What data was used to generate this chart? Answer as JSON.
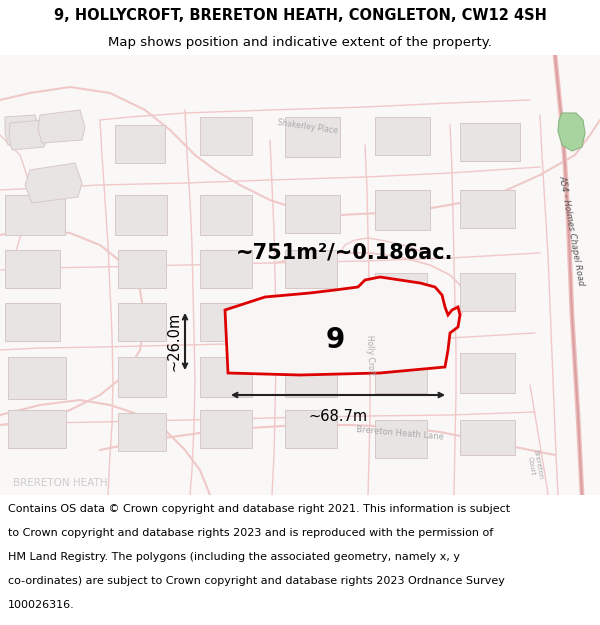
{
  "title_line1": "9, HOLLYCROFT, BRERETON HEATH, CONGLETON, CW12 4SH",
  "title_line2": "Map shows position and indicative extent of the property.",
  "area_label": "~751m²/~0.186ac.",
  "width_label": "~68.7m",
  "height_label": "~26.0m",
  "plot_number": "9",
  "map_bg": "#f9f6f6",
  "road_color": "#f0c8c8",
  "road_lw": 1.2,
  "building_fill": "#e8e4e4",
  "building_edge": "#d8c8c8",
  "plot_outline_color": "#dd0000",
  "green_fill": "#a8d4a0",
  "green_edge": "#88b480",
  "footer_lines": [
    "Contains OS data © Crown copyright and database right 2021. This information is subject",
    "to Crown copyright and database rights 2023 and is reproduced with the permission of",
    "HM Land Registry. The polygons (including the associated geometry, namely x, y",
    "co-ordinates) are subject to Crown copyright and database rights 2023 Ordnance Survey",
    "100026316."
  ],
  "title_fontsize": 10.5,
  "subtitle_fontsize": 9.5,
  "footer_fontsize": 8.0,
  "area_fontsize": 15,
  "plot_num_fontsize": 20,
  "measure_fontsize": 10.5
}
